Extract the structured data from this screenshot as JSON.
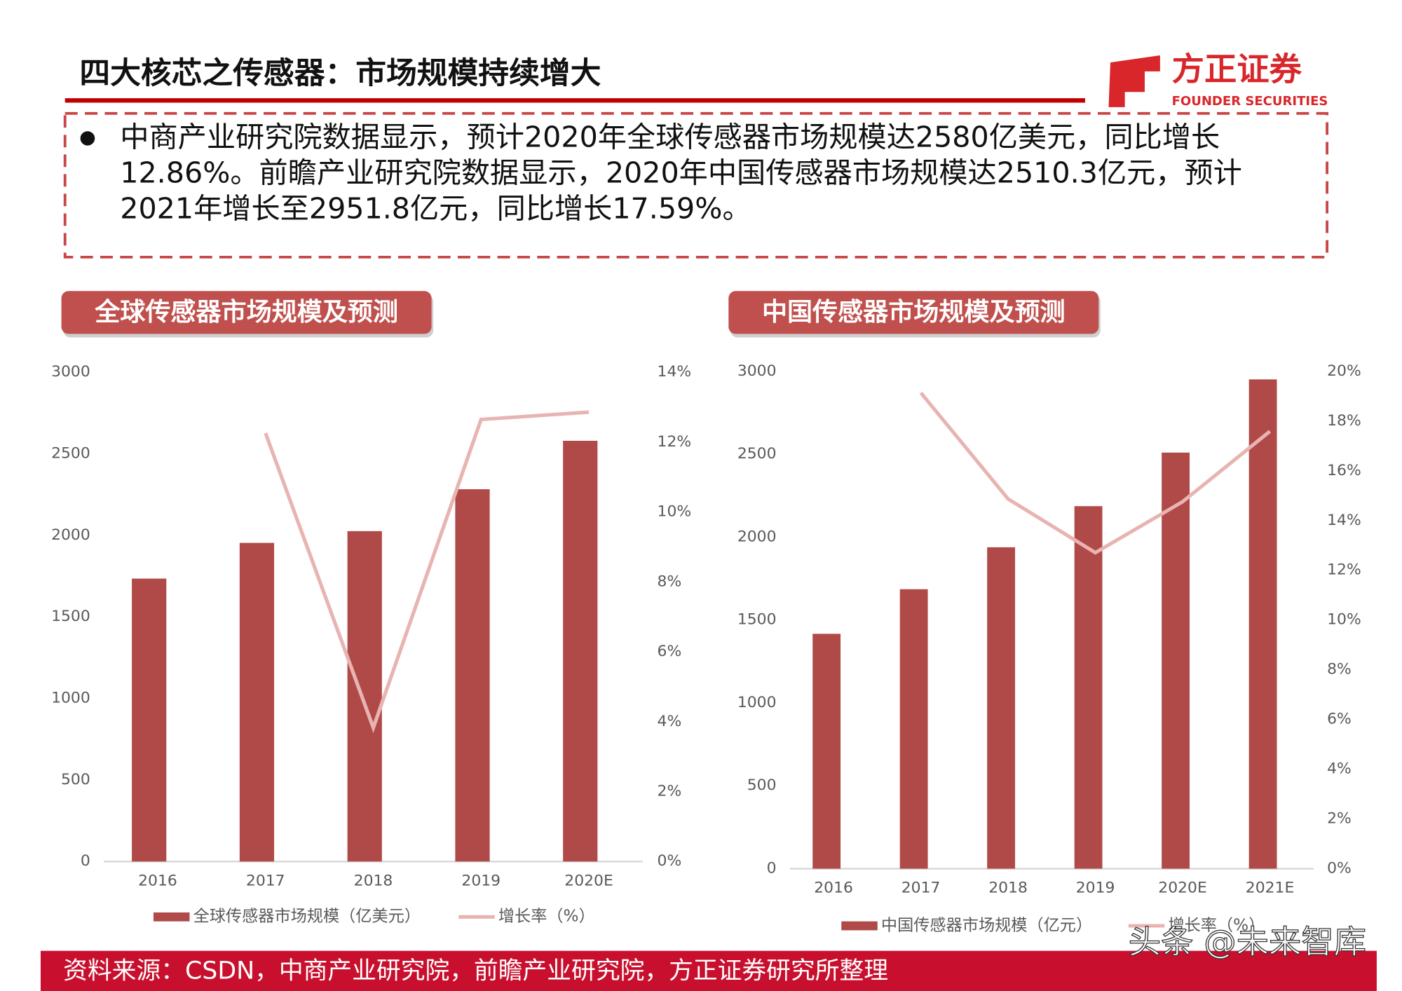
{
  "title": "四大核芯之传感器：市场规模持续增大",
  "logo": {
    "name": "方正证券",
    "name_en": "FOUNDER SECURITIES"
  },
  "bullet_lines": [
    "中商产业研究院数据显示，预计2020年全球传感器市场规模达2580亿美元，同比增长",
    "12.86%。前瞻产业研究院数据显示，2020年中国传感器市场规模达2510.3亿元，预计",
    "2021年增长至2951.8亿元，同比增长17.59%。"
  ],
  "chart_data": [
    {
      "type": "bar",
      "title": "全球传感器市场规模及预测",
      "categories": [
        "2016",
        "2017",
        "2018",
        "2019",
        "2020E"
      ],
      "series": [
        {
          "name": "全球传感器市场规模（亿美元）",
          "type": "bar",
          "color": "#b04a48",
          "values": [
            1735,
            1954,
            2026,
            2283,
            2580
          ]
        },
        {
          "name": "增长率（%）",
          "type": "line",
          "axis": "y2",
          "color": "#e8b4b2",
          "values": [
            null,
            12.26,
            3.83,
            12.65,
            12.86
          ]
        }
      ],
      "ylim": [
        0,
        3000
      ],
      "yticks": [
        0,
        500,
        1000,
        1500,
        2000,
        2500,
        3000
      ],
      "y2lim": [
        0,
        14
      ],
      "y2ticks": [
        {
          "value": 0,
          "label": "0%"
        },
        {
          "value": 2,
          "label": "2%"
        },
        {
          "value": 4,
          "label": "4%"
        },
        {
          "value": 6,
          "label": "6%"
        },
        {
          "value": 8,
          "label": "8%"
        },
        {
          "value": 10,
          "label": "10%"
        },
        {
          "value": 12,
          "label": "12%"
        },
        {
          "value": 14,
          "label": "14%"
        }
      ],
      "grid": false,
      "legend": "bottom"
    },
    {
      "type": "bar",
      "title": "中国传感器市场规模及预测",
      "categories": [
        "2016",
        "2017",
        "2018",
        "2019",
        "2020E",
        "2021E"
      ],
      "series": [
        {
          "name": "中国传感器市场规模（亿元）",
          "type": "bar",
          "color": "#b04a48",
          "values": [
            1417,
            1686,
            1939,
            2187,
            2510.3,
            2951.8
          ]
        },
        {
          "name": "增长率（%）",
          "type": "line",
          "axis": "y2",
          "color": "#e8b4b2",
          "values": [
            null,
            19.14,
            14.87,
            12.71,
            14.76,
            17.59
          ]
        }
      ],
      "ylim": [
        0,
        3000
      ],
      "yticks": [
        0,
        500,
        1000,
        1500,
        2000,
        2500,
        3000
      ],
      "y2lim": [
        0,
        20
      ],
      "y2ticks": [
        {
          "value": 0,
          "label": "0%"
        },
        {
          "value": 2,
          "label": "2%"
        },
        {
          "value": 4,
          "label": "4%"
        },
        {
          "value": 6,
          "label": "6%"
        },
        {
          "value": 8,
          "label": "8%"
        },
        {
          "value": 10,
          "label": "10%"
        },
        {
          "value": 12,
          "label": "12%"
        },
        {
          "value": 14,
          "label": "14%"
        },
        {
          "value": 16,
          "label": "16%"
        },
        {
          "value": 18,
          "label": "18%"
        },
        {
          "value": 20,
          "label": "20%"
        }
      ],
      "grid": false,
      "legend": "bottom"
    }
  ],
  "source": "资料来源：CSDN，中商产业研究院，前瞻产业研究院，方正证券研究所整理",
  "watermark": "头条 @未来智库"
}
